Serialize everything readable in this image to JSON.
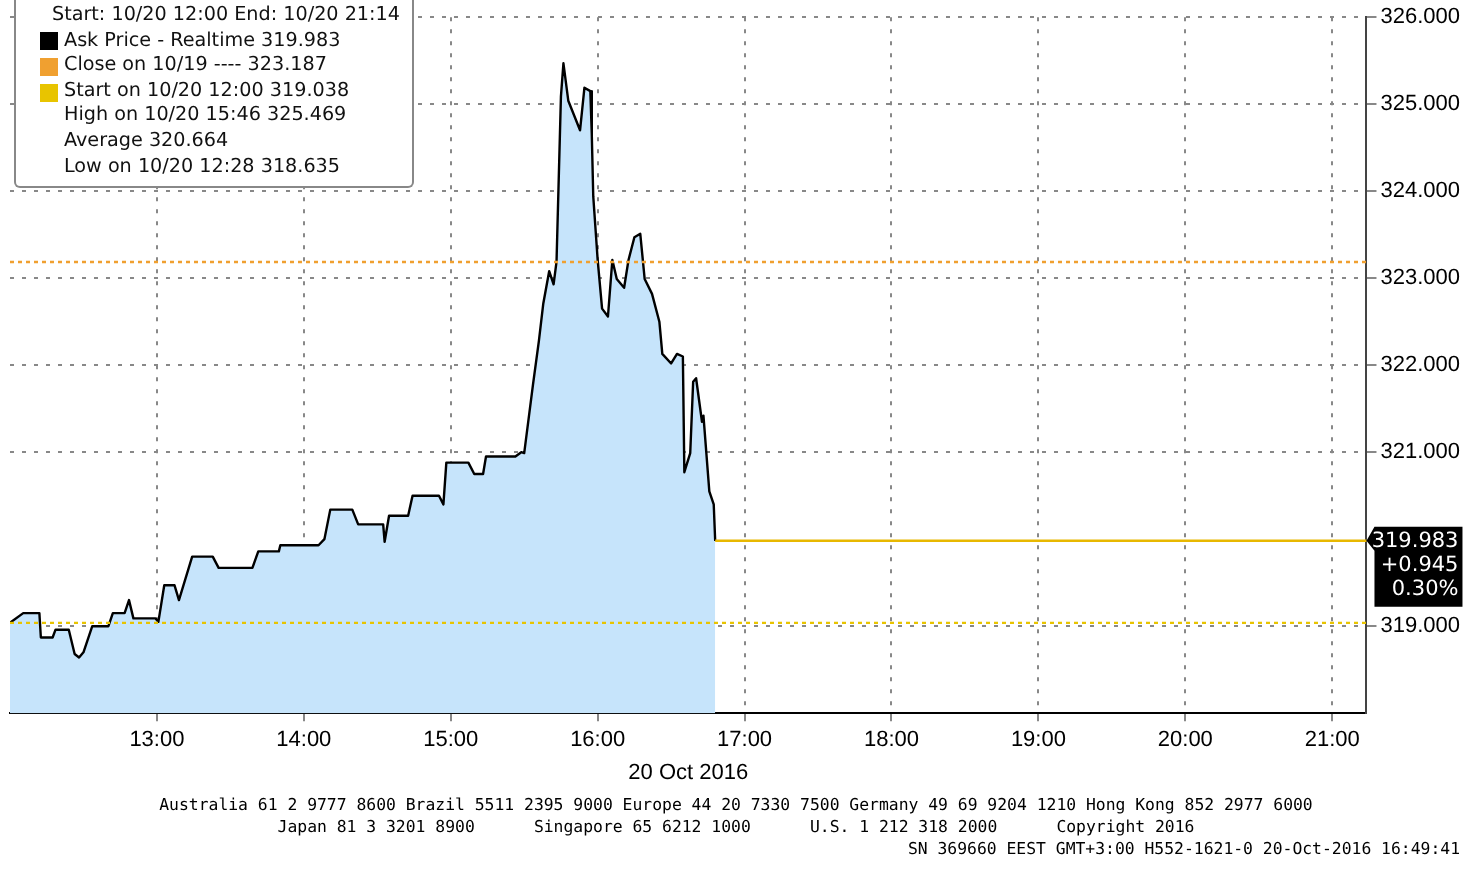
{
  "chart_data": {
    "type": "area",
    "legend_title": "Start: 10/20 12:00 End: 10/20 21:14",
    "xlabel": "20 Oct 2016",
    "xlim": [
      12,
      21.233
    ],
    "xticks": [
      {
        "value": 13,
        "label": "13:00"
      },
      {
        "value": 14,
        "label": "14:00"
      },
      {
        "value": 15,
        "label": "15:00"
      },
      {
        "value": 16,
        "label": "16:00"
      },
      {
        "value": 17,
        "label": "17:00"
      },
      {
        "value": 18,
        "label": "18:00"
      },
      {
        "value": 19,
        "label": "19:00"
      },
      {
        "value": 20,
        "label": "20:00"
      },
      {
        "value": 21,
        "label": "21:00"
      }
    ],
    "ylim": [
      318,
      326
    ],
    "yticks": [
      {
        "value": 319,
        "label": "319.000"
      },
      {
        "value": 321,
        "label": "321.000"
      },
      {
        "value": 322,
        "label": "322.000"
      },
      {
        "value": 323,
        "label": "323.000"
      },
      {
        "value": 324,
        "label": "324.000"
      },
      {
        "value": 325,
        "label": "325.000"
      },
      {
        "value": 326,
        "label": "326.000"
      }
    ],
    "grid": true,
    "legend": "top left",
    "series": [
      {
        "name": "Ask Price - Realtime 319.983",
        "color": "#000000",
        "x": [
          12.0,
          12.09,
          12.2,
          12.21,
          12.29,
          12.31,
          12.4,
          12.44,
          12.47,
          12.5,
          12.56,
          12.67,
          12.7,
          12.78,
          12.81,
          12.84,
          12.99,
          13.01,
          13.05,
          13.12,
          13.15,
          13.24,
          13.38,
          13.42,
          13.65,
          13.69,
          13.83,
          13.84,
          14.1,
          14.14,
          14.18,
          14.33,
          14.37,
          14.54,
          14.55,
          14.58,
          14.71,
          14.74,
          14.92,
          14.95,
          14.97,
          15.12,
          15.16,
          15.22,
          15.24,
          15.44,
          15.48,
          15.5,
          15.56,
          15.6,
          15.63,
          15.67,
          15.7,
          15.72,
          15.75,
          15.767,
          15.8,
          15.84,
          15.88,
          15.91,
          15.95,
          15.96,
          15.97,
          16.0,
          16.03,
          16.07,
          16.1,
          16.13,
          16.18,
          16.21,
          16.25,
          16.29,
          16.32,
          16.37,
          16.42,
          16.44,
          16.5,
          16.54,
          16.58,
          16.59,
          16.63,
          16.65,
          16.67,
          16.71,
          16.72,
          16.76,
          16.79,
          16.8
        ],
        "values": [
          319.04,
          319.15,
          319.15,
          318.87,
          318.87,
          318.96,
          318.96,
          318.68,
          318.64,
          318.7,
          319.0,
          319.0,
          319.15,
          319.15,
          319.3,
          319.09,
          319.09,
          319.05,
          319.47,
          319.47,
          319.3,
          319.8,
          319.8,
          319.67,
          319.67,
          319.86,
          319.86,
          319.93,
          319.93,
          320.0,
          320.34,
          320.34,
          320.17,
          320.17,
          319.97,
          320.27,
          320.27,
          320.5,
          320.5,
          320.4,
          320.88,
          320.88,
          320.75,
          320.75,
          320.95,
          320.95,
          321.0,
          320.99,
          321.78,
          322.28,
          322.71,
          323.08,
          322.93,
          323.19,
          325.09,
          325.47,
          325.04,
          324.87,
          324.7,
          325.19,
          325.15,
          324.65,
          323.94,
          323.21,
          322.65,
          322.56,
          323.21,
          322.99,
          322.89,
          323.21,
          323.47,
          323.51,
          322.99,
          322.82,
          322.5,
          322.13,
          322.02,
          322.13,
          322.1,
          320.77,
          320.99,
          321.81,
          321.85,
          321.35,
          321.42,
          320.55,
          320.4,
          319.98
        ]
      }
    ],
    "ref_lines": [
      {
        "axis": "y",
        "value": 323.187,
        "label": "Close on 10/19 ---- 323.187",
        "color": "#f0a030",
        "line_style": "dotted"
      },
      {
        "axis": "y",
        "value": 319.038,
        "label": "Start on 10/20 12:00 319.038",
        "color": "#e8c400",
        "line_style": "dotted"
      },
      {
        "axis": "y",
        "value": 319.983,
        "label": "319.983\n+0.945\n0.30%",
        "color": "#e8b800",
        "line_style": "solid"
      }
    ],
    "annotations": [
      "High on 10/20 15:46 325.469",
      "Average 320.664",
      "Low on 10/20 12:28 318.635",
      "Australia 61 2 9777 8600 Brazil 5511 2395 9000 Europe 44 20 7330 7500 Germany 49 69 9204 1210 Hong Kong 852 2977 6000",
      "Japan 81 3 3201 8900      Singapore 65 6212 1000      U.S. 1 212 318 2000      Copyright 2016",
      "SN 369660 EEST GMT+3:00 H552-1621-0 20-Oct-2016 16:49:41"
    ]
  }
}
